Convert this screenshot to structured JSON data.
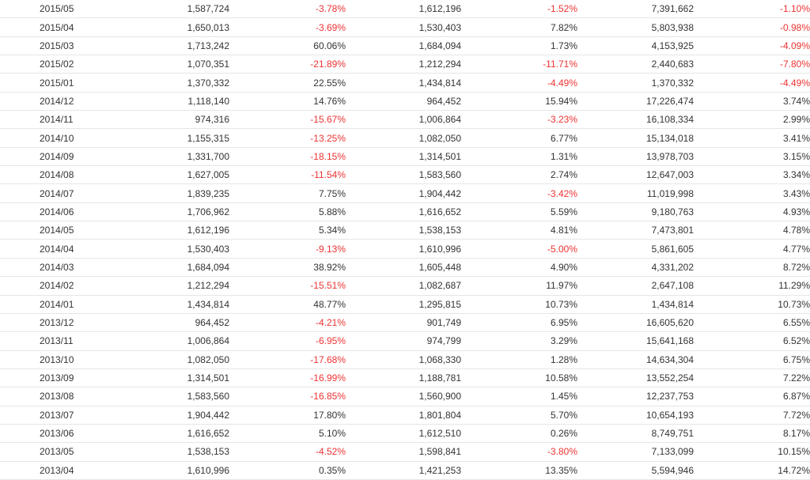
{
  "colors": {
    "negative": "#ee3333",
    "positive": "#333333",
    "row_border": "#e6e6e6"
  },
  "table": {
    "rows": [
      {
        "period": "2015/05",
        "value_a": "1,587,724",
        "change_a": "-3.78%",
        "value_b": "1,612,196",
        "change_b": "-1.52%",
        "value_c": "7,391,662",
        "change_c": "-1.10%"
      },
      {
        "period": "2015/04",
        "value_a": "1,650,013",
        "change_a": "-3.69%",
        "value_b": "1,530,403",
        "change_b": "7.82%",
        "value_c": "5,803,938",
        "change_c": "-0.98%"
      },
      {
        "period": "2015/03",
        "value_a": "1,713,242",
        "change_a": "60.06%",
        "value_b": "1,684,094",
        "change_b": "1.73%",
        "value_c": "4,153,925",
        "change_c": "-4.09%"
      },
      {
        "period": "2015/02",
        "value_a": "1,070,351",
        "change_a": "-21.89%",
        "value_b": "1,212,294",
        "change_b": "-11.71%",
        "value_c": "2,440,683",
        "change_c": "-7.80%"
      },
      {
        "period": "2015/01",
        "value_a": "1,370,332",
        "change_a": "22.55%",
        "value_b": "1,434,814",
        "change_b": "-4.49%",
        "value_c": "1,370,332",
        "change_c": "-4.49%"
      },
      {
        "period": "2014/12",
        "value_a": "1,118,140",
        "change_a": "14.76%",
        "value_b": "964,452",
        "change_b": "15.94%",
        "value_c": "17,226,474",
        "change_c": "3.74%"
      },
      {
        "period": "2014/11",
        "value_a": "974,316",
        "change_a": "-15.67%",
        "value_b": "1,006,864",
        "change_b": "-3.23%",
        "value_c": "16,108,334",
        "change_c": "2.99%"
      },
      {
        "period": "2014/10",
        "value_a": "1,155,315",
        "change_a": "-13.25%",
        "value_b": "1,082,050",
        "change_b": "6.77%",
        "value_c": "15,134,018",
        "change_c": "3.41%"
      },
      {
        "period": "2014/09",
        "value_a": "1,331,700",
        "change_a": "-18.15%",
        "value_b": "1,314,501",
        "change_b": "1.31%",
        "value_c": "13,978,703",
        "change_c": "3.15%"
      },
      {
        "period": "2014/08",
        "value_a": "1,627,005",
        "change_a": "-11.54%",
        "value_b": "1,583,560",
        "change_b": "2.74%",
        "value_c": "12,647,003",
        "change_c": "3.34%"
      },
      {
        "period": "2014/07",
        "value_a": "1,839,235",
        "change_a": "7.75%",
        "value_b": "1,904,442",
        "change_b": "-3.42%",
        "value_c": "11,019,998",
        "change_c": "3.43%"
      },
      {
        "period": "2014/06",
        "value_a": "1,706,962",
        "change_a": "5.88%",
        "value_b": "1,616,652",
        "change_b": "5.59%",
        "value_c": "9,180,763",
        "change_c": "4.93%"
      },
      {
        "period": "2014/05",
        "value_a": "1,612,196",
        "change_a": "5.34%",
        "value_b": "1,538,153",
        "change_b": "4.81%",
        "value_c": "7,473,801",
        "change_c": "4.78%"
      },
      {
        "period": "2014/04",
        "value_a": "1,530,403",
        "change_a": "-9.13%",
        "value_b": "1,610,996",
        "change_b": "-5.00%",
        "value_c": "5,861,605",
        "change_c": "4.77%"
      },
      {
        "period": "2014/03",
        "value_a": "1,684,094",
        "change_a": "38.92%",
        "value_b": "1,605,448",
        "change_b": "4.90%",
        "value_c": "4,331,202",
        "change_c": "8.72%"
      },
      {
        "period": "2014/02",
        "value_a": "1,212,294",
        "change_a": "-15.51%",
        "value_b": "1,082,687",
        "change_b": "11.97%",
        "value_c": "2,647,108",
        "change_c": "11.29%"
      },
      {
        "period": "2014/01",
        "value_a": "1,434,814",
        "change_a": "48.77%",
        "value_b": "1,295,815",
        "change_b": "10.73%",
        "value_c": "1,434,814",
        "change_c": "10.73%"
      },
      {
        "period": "2013/12",
        "value_a": "964,452",
        "change_a": "-4.21%",
        "value_b": "901,749",
        "change_b": "6.95%",
        "value_c": "16,605,620",
        "change_c": "6.55%"
      },
      {
        "period": "2013/11",
        "value_a": "1,006,864",
        "change_a": "-6.95%",
        "value_b": "974,799",
        "change_b": "3.29%",
        "value_c": "15,641,168",
        "change_c": "6.52%"
      },
      {
        "period": "2013/10",
        "value_a": "1,082,050",
        "change_a": "-17.68%",
        "value_b": "1,068,330",
        "change_b": "1.28%",
        "value_c": "14,634,304",
        "change_c": "6.75%"
      },
      {
        "period": "2013/09",
        "value_a": "1,314,501",
        "change_a": "-16.99%",
        "value_b": "1,188,781",
        "change_b": "10.58%",
        "value_c": "13,552,254",
        "change_c": "7.22%"
      },
      {
        "period": "2013/08",
        "value_a": "1,583,560",
        "change_a": "-16.85%",
        "value_b": "1,560,900",
        "change_b": "1.45%",
        "value_c": "12,237,753",
        "change_c": "6.87%"
      },
      {
        "period": "2013/07",
        "value_a": "1,904,442",
        "change_a": "17.80%",
        "value_b": "1,801,804",
        "change_b": "5.70%",
        "value_c": "10,654,193",
        "change_c": "7.72%"
      },
      {
        "period": "2013/06",
        "value_a": "1,616,652",
        "change_a": "5.10%",
        "value_b": "1,612,510",
        "change_b": "0.26%",
        "value_c": "8,749,751",
        "change_c": "8.17%"
      },
      {
        "period": "2013/05",
        "value_a": "1,538,153",
        "change_a": "-4.52%",
        "value_b": "1,598,841",
        "change_b": "-3.80%",
        "value_c": "7,133,099",
        "change_c": "10.15%"
      },
      {
        "period": "2013/04",
        "value_a": "1,610,996",
        "change_a": "0.35%",
        "value_b": "1,421,253",
        "change_b": "13.35%",
        "value_c": "5,594,946",
        "change_c": "14.72%"
      }
    ]
  }
}
